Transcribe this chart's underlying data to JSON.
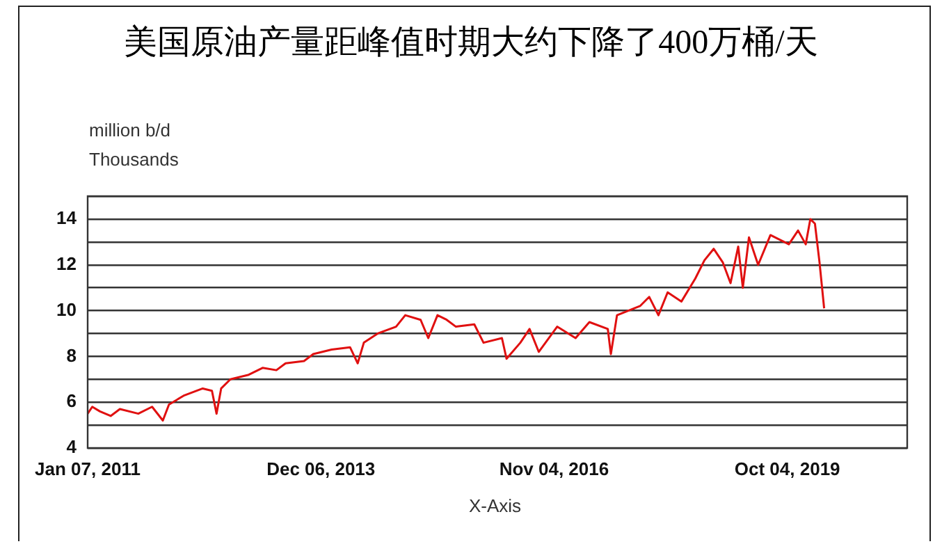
{
  "chart_data": {
    "type": "line",
    "title": "美国原油产量距峰值时期大约下降了400万桶/天",
    "ylabel": "million b/d",
    "annotations": [
      "Thousands"
    ],
    "xlabel": "X-Axis",
    "xlim": [
      "2011-01-07",
      "2021-04-03"
    ],
    "xticks": [
      {
        "value": "2011-01-07",
        "label": "Jan 07, 2011"
      },
      {
        "value": "2013-12-06",
        "label": "Dec 06, 2013"
      },
      {
        "value": "2016-11-04",
        "label": "Nov 04, 2016"
      },
      {
        "value": "2019-10-04",
        "label": "Oct 04, 2019"
      }
    ],
    "ylim": [
      4,
      15
    ],
    "yticks": [
      4,
      {
        "value": 5,
        "label": null
      },
      6,
      {
        "value": 7,
        "label": null
      },
      8,
      {
        "value": 9,
        "label": null
      },
      10,
      {
        "value": 11,
        "label": null
      },
      12,
      {
        "value": 13,
        "label": null
      },
      14,
      {
        "value": 15,
        "label": null
      }
    ],
    "grid": "y",
    "legend": false,
    "marker": "none",
    "line_style": "solid",
    "series": [
      {
        "color": "#e01010",
        "x": [
          "2011-01-07",
          "2011-01-28",
          "2011-03-04",
          "2011-04-22",
          "2011-06-03",
          "2011-08-26",
          "2011-10-28",
          "2011-12-16",
          "2012-01-13",
          "2012-03-23",
          "2012-06-15",
          "2012-07-27",
          "2012-08-17",
          "2012-09-07",
          "2012-10-19",
          "2013-01-11",
          "2013-03-15",
          "2013-05-17",
          "2013-06-28",
          "2013-09-20",
          "2013-11-01",
          "2014-01-24",
          "2014-04-18",
          "2014-05-23",
          "2014-06-20",
          "2014-08-22",
          "2014-11-14",
          "2014-12-26",
          "2015-03-06",
          "2015-04-10",
          "2015-05-22",
          "2015-07-03",
          "2015-08-14",
          "2015-11-06",
          "2015-12-18",
          "2016-03-11",
          "2016-04-01",
          "2016-06-03",
          "2016-07-15",
          "2016-08-26",
          "2016-11-18",
          "2017-02-10",
          "2017-04-14",
          "2017-07-07",
          "2017-07-21",
          "2017-08-18",
          "2017-12-01",
          "2018-01-12",
          "2018-02-23",
          "2018-04-06",
          "2018-06-08",
          "2018-08-10",
          "2018-09-21",
          "2018-11-02",
          "2018-12-14",
          "2019-01-18",
          "2019-02-22",
          "2019-03-15",
          "2019-04-12",
          "2019-05-24",
          "2019-07-19",
          "2019-10-11",
          "2019-11-22",
          "2019-12-27",
          "2020-01-17",
          "2020-02-07",
          "2020-02-28",
          "2020-03-20"
        ],
        "values": [
          5.5,
          5.8,
          5.6,
          5.4,
          5.7,
          5.5,
          5.8,
          5.2,
          5.9,
          6.3,
          6.6,
          6.5,
          5.5,
          6.6,
          7.0,
          7.2,
          7.5,
          7.4,
          7.7,
          7.8,
          8.1,
          8.3,
          8.4,
          7.7,
          8.6,
          9.0,
          9.3,
          9.8,
          9.6,
          8.8,
          9.8,
          9.6,
          9.3,
          9.4,
          8.6,
          8.8,
          7.9,
          8.6,
          9.2,
          8.2,
          9.3,
          8.8,
          9.5,
          9.2,
          8.1,
          9.8,
          10.2,
          10.6,
          9.8,
          10.8,
          10.4,
          11.4,
          12.2,
          12.7,
          12.1,
          11.2,
          12.8,
          11.0,
          13.2,
          12.0,
          13.3,
          12.9,
          13.5,
          12.9,
          14.0,
          13.8,
          12.1,
          10.1
        ]
      }
    ]
  }
}
